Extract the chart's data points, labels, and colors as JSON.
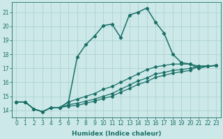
{
  "xlabel": "Humidex (Indice chaleur)",
  "xlim": [
    -0.5,
    23.5
  ],
  "ylim": [
    13.5,
    21.7
  ],
  "xticks": [
    0,
    1,
    2,
    3,
    4,
    5,
    6,
    7,
    8,
    9,
    10,
    11,
    12,
    13,
    14,
    15,
    16,
    17,
    18,
    19,
    20,
    21,
    22,
    23
  ],
  "yticks": [
    14,
    15,
    16,
    17,
    18,
    19,
    20,
    21
  ],
  "bg_color": "#cce8e8",
  "line_color": "#1a7068",
  "grid_color": "#aacfcf",
  "lines": [
    {
      "x": [
        0,
        1,
        2,
        3,
        4,
        5,
        6,
        7,
        8,
        9,
        10,
        11,
        12,
        13,
        14,
        15,
        16,
        17,
        18,
        19,
        20,
        21,
        22,
        23
      ],
      "y": [
        14.6,
        14.6,
        14.1,
        13.9,
        14.2,
        14.2,
        14.6,
        17.8,
        18.7,
        19.3,
        20.05,
        20.15,
        19.2,
        20.8,
        21.0,
        21.3,
        20.3,
        19.5,
        18.0,
        17.4,
        17.3,
        17.0,
        17.15,
        17.2
      ],
      "marker": "D",
      "markersize": 2.2,
      "linewidth": 1.1,
      "zorder": 4
    },
    {
      "x": [
        0,
        1,
        2,
        3,
        4,
        5,
        6,
        7,
        8,
        9,
        10,
        11,
        12,
        13,
        14,
        15,
        16,
        17,
        18,
        19,
        20,
        21,
        22,
        23
      ],
      "y": [
        14.6,
        14.6,
        14.1,
        13.9,
        14.2,
        14.2,
        14.6,
        14.8,
        15.0,
        15.2,
        15.5,
        15.7,
        16.0,
        16.3,
        16.6,
        16.9,
        17.1,
        17.2,
        17.3,
        17.3,
        17.3,
        17.15,
        17.15,
        17.2
      ],
      "marker": "D",
      "markersize": 2.0,
      "linewidth": 0.9,
      "zorder": 3
    },
    {
      "x": [
        0,
        1,
        2,
        3,
        4,
        5,
        6,
        7,
        8,
        9,
        10,
        11,
        12,
        13,
        14,
        15,
        16,
        17,
        18,
        19,
        20,
        21,
        22,
        23
      ],
      "y": [
        14.6,
        14.6,
        14.1,
        13.9,
        14.2,
        14.2,
        14.4,
        14.5,
        14.65,
        14.8,
        15.0,
        15.2,
        15.5,
        15.8,
        16.1,
        16.3,
        16.6,
        16.7,
        16.85,
        16.9,
        17.0,
        17.15,
        17.15,
        17.2
      ],
      "marker": "D",
      "markersize": 2.0,
      "linewidth": 0.9,
      "zorder": 3
    },
    {
      "x": [
        0,
        1,
        2,
        3,
        4,
        5,
        6,
        7,
        8,
        9,
        10,
        11,
        12,
        13,
        14,
        15,
        16,
        17,
        18,
        19,
        20,
        21,
        22,
        23
      ],
      "y": [
        14.6,
        14.6,
        14.1,
        13.9,
        14.2,
        14.2,
        14.3,
        14.35,
        14.5,
        14.65,
        14.85,
        15.0,
        15.3,
        15.55,
        15.85,
        16.05,
        16.35,
        16.5,
        16.65,
        16.75,
        16.85,
        17.15,
        17.15,
        17.2
      ],
      "marker": "D",
      "markersize": 2.0,
      "linewidth": 0.9,
      "zorder": 3
    }
  ]
}
